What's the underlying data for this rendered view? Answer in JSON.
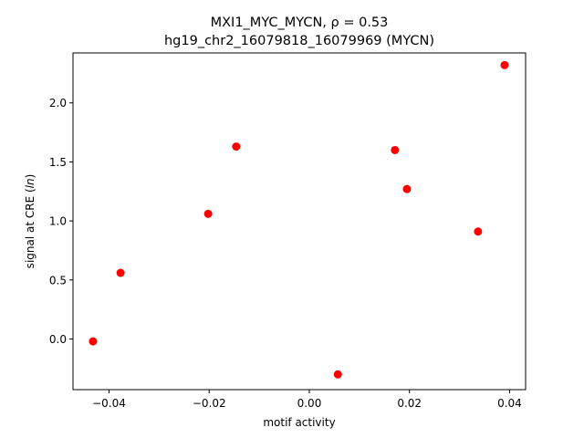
{
  "chart_data": {
    "type": "scatter",
    "title_line1": "MXI1_MYC_MYCN, ρ = 0.53",
    "title_line2": "hg19_chr2_16079818_16079969 (MYCN)",
    "xlabel": "motif activity",
    "ylabel_prefix": "signal at CRE (",
    "ylabel_italic": "ln",
    "ylabel_suffix": ")",
    "xlim": [
      -0.0472,
      0.0432
    ],
    "ylim": [
      -0.4292,
      2.4232
    ],
    "xticks": [
      {
        "value": -0.04,
        "label": "−0.04"
      },
      {
        "value": -0.02,
        "label": "−0.02"
      },
      {
        "value": 0.0,
        "label": "0.00"
      },
      {
        "value": 0.02,
        "label": "0.02"
      },
      {
        "value": 0.04,
        "label": "0.04"
      }
    ],
    "yticks": [
      {
        "value": 0.0,
        "label": "0.0"
      },
      {
        "value": 0.5,
        "label": "0.5"
      },
      {
        "value": 1.0,
        "label": "1.0"
      },
      {
        "value": 1.5,
        "label": "1.5"
      },
      {
        "value": 2.0,
        "label": "2.0"
      }
    ],
    "marker_color": "#ff0000",
    "points": [
      {
        "x": -0.0432,
        "y": -0.02
      },
      {
        "x": -0.0377,
        "y": 0.56
      },
      {
        "x": -0.0202,
        "y": 1.06
      },
      {
        "x": -0.0146,
        "y": 1.63
      },
      {
        "x": 0.0057,
        "y": -0.3
      },
      {
        "x": 0.0171,
        "y": 1.6
      },
      {
        "x": 0.0195,
        "y": 1.27
      },
      {
        "x": 0.0337,
        "y": 0.91
      },
      {
        "x": 0.039,
        "y": 2.32
      }
    ],
    "grid": false
  }
}
